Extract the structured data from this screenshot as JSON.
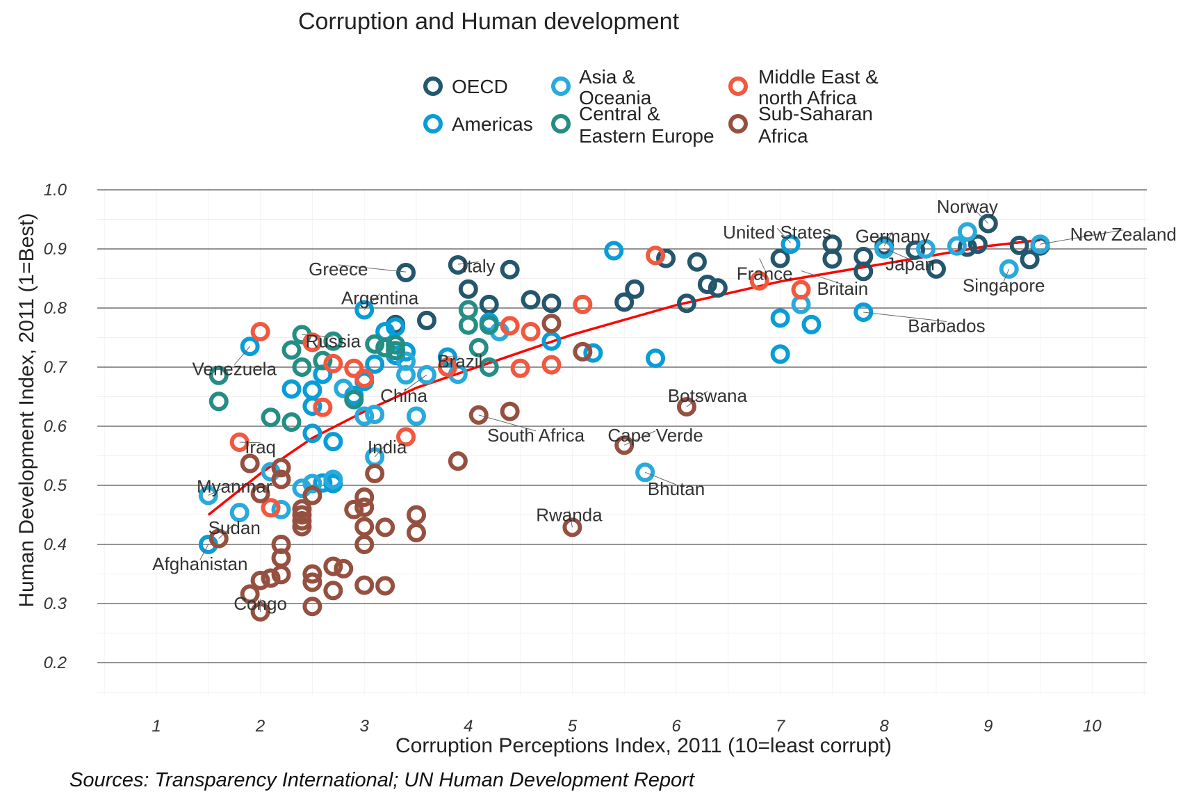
{
  "chart_data": {
    "type": "scatter",
    "title": "Corruption and Human development",
    "xlabel": "Corruption Perceptions Index, 2011 (10=least corrupt)",
    "ylabel": "Human Development Index, 2011 (1=Best)",
    "caption": "Sources: Transparency International; UN Human Development Report",
    "xlim": [
      0.5,
      10.5
    ],
    "ylim": [
      0.2,
      1.0
    ],
    "xticks": [
      "1",
      "2",
      "3",
      "4",
      "5",
      "6",
      "7",
      "8",
      "9",
      "10"
    ],
    "yticks": [
      "0.2",
      "0.3",
      "0.4",
      "0.5",
      "0.6",
      "0.7",
      "0.8",
      "0.9",
      "1.0"
    ],
    "grid": true,
    "legend": {
      "position": "top",
      "entries": [
        {
          "line1": "OECD",
          "line2": "",
          "color": "#24576D"
        },
        {
          "line1": "Americas",
          "line2": "",
          "color": "#099DD7"
        },
        {
          "line1": "Asia &",
          "line2": "Oceania",
          "color": "#28AADC"
        },
        {
          "line1": "Central &",
          "line2": "Eastern Europe",
          "color": "#248E84"
        },
        {
          "line1": "Middle East &",
          "line2": "north Africa",
          "color": "#F2583F"
        },
        {
          "line1": "Sub-Saharan",
          "line2": "Africa",
          "color": "#96503F"
        }
      ]
    },
    "trend_line": {
      "color": "#FF0000",
      "points": [
        [
          1.5,
          0.45
        ],
        [
          2.0,
          0.52
        ],
        [
          2.5,
          0.58
        ],
        [
          3.0,
          0.625
        ],
        [
          3.5,
          0.665
        ],
        [
          4.0,
          0.695
        ],
        [
          4.5,
          0.725
        ],
        [
          5.0,
          0.755
        ],
        [
          5.5,
          0.78
        ],
        [
          6.0,
          0.805
        ],
        [
          6.5,
          0.825
        ],
        [
          7.0,
          0.845
        ],
        [
          7.5,
          0.86
        ],
        [
          8.0,
          0.875
        ],
        [
          8.5,
          0.89
        ],
        [
          9.0,
          0.905
        ],
        [
          9.5,
          0.915
        ]
      ]
    },
    "series": [
      {
        "name": "OECD",
        "color": "#24576D",
        "points": [
          [
            3.4,
            0.86
          ],
          [
            3.9,
            0.873
          ],
          [
            4.4,
            0.865
          ],
          [
            3.3,
            0.772
          ],
          [
            3.6,
            0.779
          ],
          [
            4.0,
            0.832
          ],
          [
            4.2,
            0.806
          ],
          [
            4.6,
            0.814
          ],
          [
            4.8,
            0.808
          ],
          [
            5.5,
            0.81
          ],
          [
            5.6,
            0.832
          ],
          [
            5.9,
            0.884
          ],
          [
            6.1,
            0.808
          ],
          [
            6.2,
            0.878
          ],
          [
            6.3,
            0.84
          ],
          [
            6.4,
            0.834
          ],
          [
            7.0,
            0.884
          ],
          [
            7.5,
            0.908
          ],
          [
            7.5,
            0.883
          ],
          [
            7.8,
            0.887
          ],
          [
            7.8,
            0.862
          ],
          [
            8.0,
            0.905
          ],
          [
            8.3,
            0.898
          ],
          [
            8.5,
            0.866
          ],
          [
            8.8,
            0.903
          ],
          [
            8.9,
            0.908
          ],
          [
            9.0,
            0.943
          ],
          [
            9.3,
            0.906
          ],
          [
            9.4,
            0.882
          ],
          [
            9.5,
            0.905
          ]
        ]
      },
      {
        "name": "Americas",
        "color": "#099DD7",
        "points": [
          [
            1.5,
            0.4
          ],
          [
            1.9,
            0.735
          ],
          [
            2.3,
            0.663
          ],
          [
            2.5,
            0.661
          ],
          [
            2.5,
            0.634
          ],
          [
            2.5,
            0.588
          ],
          [
            2.6,
            0.688
          ],
          [
            2.6,
            0.504
          ],
          [
            2.7,
            0.574
          ],
          [
            2.7,
            0.503
          ],
          [
            2.9,
            0.652
          ],
          [
            3.0,
            0.797
          ],
          [
            3.0,
            0.676
          ],
          [
            3.1,
            0.705
          ],
          [
            3.2,
            0.76
          ],
          [
            3.3,
            0.768
          ],
          [
            3.3,
            0.72
          ],
          [
            3.4,
            0.726
          ],
          [
            3.8,
            0.717
          ],
          [
            4.2,
            0.776
          ],
          [
            4.8,
            0.744
          ],
          [
            5.2,
            0.724
          ],
          [
            5.4,
            0.897
          ],
          [
            5.8,
            0.715
          ],
          [
            7.0,
            0.783
          ],
          [
            7.0,
            0.722
          ],
          [
            7.1,
            0.908
          ],
          [
            7.3,
            0.772
          ],
          [
            7.8,
            0.793
          ]
        ]
      },
      {
        "name": "Asia & Oceania",
        "color": "#28AADC",
        "points": [
          [
            1.5,
            0.483
          ],
          [
            1.8,
            0.454
          ],
          [
            2.1,
            0.523
          ],
          [
            2.2,
            0.459
          ],
          [
            2.4,
            0.495
          ],
          [
            2.5,
            0.503
          ],
          [
            2.7,
            0.51
          ],
          [
            2.8,
            0.664
          ],
          [
            3.0,
            0.617
          ],
          [
            3.1,
            0.548
          ],
          [
            3.1,
            0.62
          ],
          [
            3.4,
            0.687
          ],
          [
            3.5,
            0.617
          ],
          [
            3.6,
            0.687
          ],
          [
            3.9,
            0.688
          ],
          [
            4.3,
            0.76
          ],
          [
            5.7,
            0.522
          ],
          [
            7.2,
            0.806
          ],
          [
            8.0,
            0.9
          ],
          [
            8.4,
            0.9
          ],
          [
            8.7,
            0.905
          ],
          [
            8.8,
            0.929
          ],
          [
            9.2,
            0.866
          ],
          [
            9.5,
            0.908
          ],
          [
            3.4,
            0.71
          ]
        ]
      },
      {
        "name": "Central & Eastern Europe",
        "color": "#248E84",
        "points": [
          [
            1.6,
            0.686
          ],
          [
            1.6,
            0.642
          ],
          [
            2.1,
            0.615
          ],
          [
            2.3,
            0.607
          ],
          [
            2.3,
            0.729
          ],
          [
            2.4,
            0.755
          ],
          [
            2.4,
            0.7
          ],
          [
            2.6,
            0.711
          ],
          [
            2.7,
            0.744
          ],
          [
            2.9,
            0.645
          ],
          [
            3.1,
            0.739
          ],
          [
            3.2,
            0.733
          ],
          [
            3.3,
            0.728
          ],
          [
            4.0,
            0.771
          ],
          [
            4.0,
            0.797
          ],
          [
            4.1,
            0.733
          ],
          [
            4.2,
            0.7
          ],
          [
            3.3,
            0.738
          ],
          [
            4.2,
            0.771
          ]
        ]
      },
      {
        "name": "Middle East & north Africa",
        "color": "#F2583F",
        "points": [
          [
            1.8,
            0.573
          ],
          [
            2.0,
            0.76
          ],
          [
            2.1,
            0.462
          ],
          [
            2.5,
            0.742
          ],
          [
            2.6,
            0.632
          ],
          [
            2.7,
            0.706
          ],
          [
            2.9,
            0.698
          ],
          [
            3.0,
            0.681
          ],
          [
            3.8,
            0.7
          ],
          [
            4.4,
            0.77
          ],
          [
            4.5,
            0.698
          ],
          [
            4.6,
            0.76
          ],
          [
            4.8,
            0.704
          ],
          [
            5.1,
            0.806
          ],
          [
            5.8,
            0.889
          ],
          [
            6.8,
            0.846
          ],
          [
            7.2,
            0.831
          ],
          [
            3.4,
            0.582
          ]
        ]
      },
      {
        "name": "Sub-Saharan Africa",
        "color": "#96503F",
        "points": [
          [
            1.6,
            0.41
          ],
          [
            1.9,
            0.316
          ],
          [
            2.0,
            0.286
          ],
          [
            2.0,
            0.339
          ],
          [
            2.0,
            0.486
          ],
          [
            1.9,
            0.537
          ],
          [
            2.1,
            0.343
          ],
          [
            2.2,
            0.349
          ],
          [
            2.2,
            0.377
          ],
          [
            2.2,
            0.4
          ],
          [
            2.2,
            0.51
          ],
          [
            2.2,
            0.53
          ],
          [
            2.4,
            0.43
          ],
          [
            2.4,
            0.44
          ],
          [
            2.4,
            0.45
          ],
          [
            2.4,
            0.46
          ],
          [
            2.5,
            0.295
          ],
          [
            2.5,
            0.336
          ],
          [
            2.5,
            0.35
          ],
          [
            2.5,
            0.483
          ],
          [
            2.7,
            0.322
          ],
          [
            2.7,
            0.363
          ],
          [
            2.8,
            0.359
          ],
          [
            2.9,
            0.459
          ],
          [
            3.0,
            0.331
          ],
          [
            3.0,
            0.4
          ],
          [
            3.0,
            0.43
          ],
          [
            3.0,
            0.463
          ],
          [
            3.0,
            0.48
          ],
          [
            3.1,
            0.52
          ],
          [
            3.2,
            0.33
          ],
          [
            3.2,
            0.429
          ],
          [
            3.5,
            0.42
          ],
          [
            3.5,
            0.45
          ],
          [
            3.9,
            0.541
          ],
          [
            4.1,
            0.619
          ],
          [
            4.4,
            0.625
          ],
          [
            4.8,
            0.774
          ],
          [
            5.0,
            0.429
          ],
          [
            5.1,
            0.726
          ],
          [
            5.5,
            0.568
          ],
          [
            6.1,
            0.633
          ]
        ]
      }
    ],
    "annotations": [
      {
        "text": "Norway",
        "x": 9.0,
        "y": 0.943,
        "lx": 8.8,
        "ly": 0.972
      },
      {
        "text": "New Zealand",
        "x": 9.5,
        "y": 0.908,
        "lx": 10.3,
        "ly": 0.925
      },
      {
        "text": "United States",
        "x": 7.1,
        "y": 0.91,
        "lx": 6.97,
        "ly": 0.928
      },
      {
        "text": "Germany",
        "x": 8.0,
        "y": 0.905,
        "lx": 8.08,
        "ly": 0.922
      },
      {
        "text": "Japan",
        "x": 8.0,
        "y": 0.901,
        "lx": 8.25,
        "ly": 0.875
      },
      {
        "text": "Singapore",
        "x": 9.2,
        "y": 0.866,
        "lx": 9.15,
        "ly": 0.838
      },
      {
        "text": "France",
        "x": 6.8,
        "y": 0.884,
        "lx": 6.85,
        "ly": 0.858
      },
      {
        "text": "Britain",
        "x": 7.2,
        "y": 0.863,
        "lx": 7.6,
        "ly": 0.833
      },
      {
        "text": "Barbados",
        "x": 7.8,
        "y": 0.793,
        "lx": 8.6,
        "ly": 0.77
      },
      {
        "text": "Greece",
        "x": 3.4,
        "y": 0.861,
        "lx": 2.75,
        "ly": 0.866
      },
      {
        "text": "Italy",
        "x": 3.9,
        "y": 0.874,
        "lx": 4.1,
        "ly": 0.871
      },
      {
        "text": "Argentina",
        "x": 3.0,
        "y": 0.797,
        "lx": 3.15,
        "ly": 0.817
      },
      {
        "text": "Russia",
        "x": 2.4,
        "y": 0.755,
        "lx": 2.7,
        "ly": 0.744
      },
      {
        "text": "Brazil",
        "x": 3.8,
        "y": 0.718,
        "lx": 3.92,
        "ly": 0.71
      },
      {
        "text": "Venezuela",
        "x": 1.9,
        "y": 0.735,
        "lx": 1.75,
        "ly": 0.697
      },
      {
        "text": "China",
        "x": 3.6,
        "y": 0.687,
        "lx": 3.38,
        "ly": 0.652
      },
      {
        "text": "South Africa",
        "x": 4.1,
        "y": 0.619,
        "lx": 4.65,
        "ly": 0.585
      },
      {
        "text": "Cape Verde",
        "x": 5.5,
        "y": 0.568,
        "lx": 5.8,
        "ly": 0.585
      },
      {
        "text": "Botswana",
        "x": 6.1,
        "y": 0.633,
        "lx": 6.3,
        "ly": 0.652
      },
      {
        "text": "Bhutan",
        "x": 5.7,
        "y": 0.522,
        "lx": 6.0,
        "ly": 0.494
      },
      {
        "text": "India",
        "x": 3.1,
        "y": 0.548,
        "lx": 3.22,
        "ly": 0.565
      },
      {
        "text": "Iraq",
        "x": 1.8,
        "y": 0.573,
        "lx": 2.0,
        "ly": 0.565
      },
      {
        "text": "Myanmar",
        "x": 1.5,
        "y": 0.483,
        "lx": 1.75,
        "ly": 0.498
      },
      {
        "text": "Rwanda",
        "x": 5.0,
        "y": 0.429,
        "lx": 4.97,
        "ly": 0.45
      },
      {
        "text": "Sudan",
        "x": 1.6,
        "y": 0.41,
        "lx": 1.75,
        "ly": 0.428
      },
      {
        "text": "Afghanistan",
        "x": 1.5,
        "y": 0.4,
        "lx": 1.42,
        "ly": 0.367
      },
      {
        "text": "Congo",
        "x": 2.0,
        "y": 0.286,
        "lx": 2.0,
        "ly": 0.3
      }
    ]
  }
}
